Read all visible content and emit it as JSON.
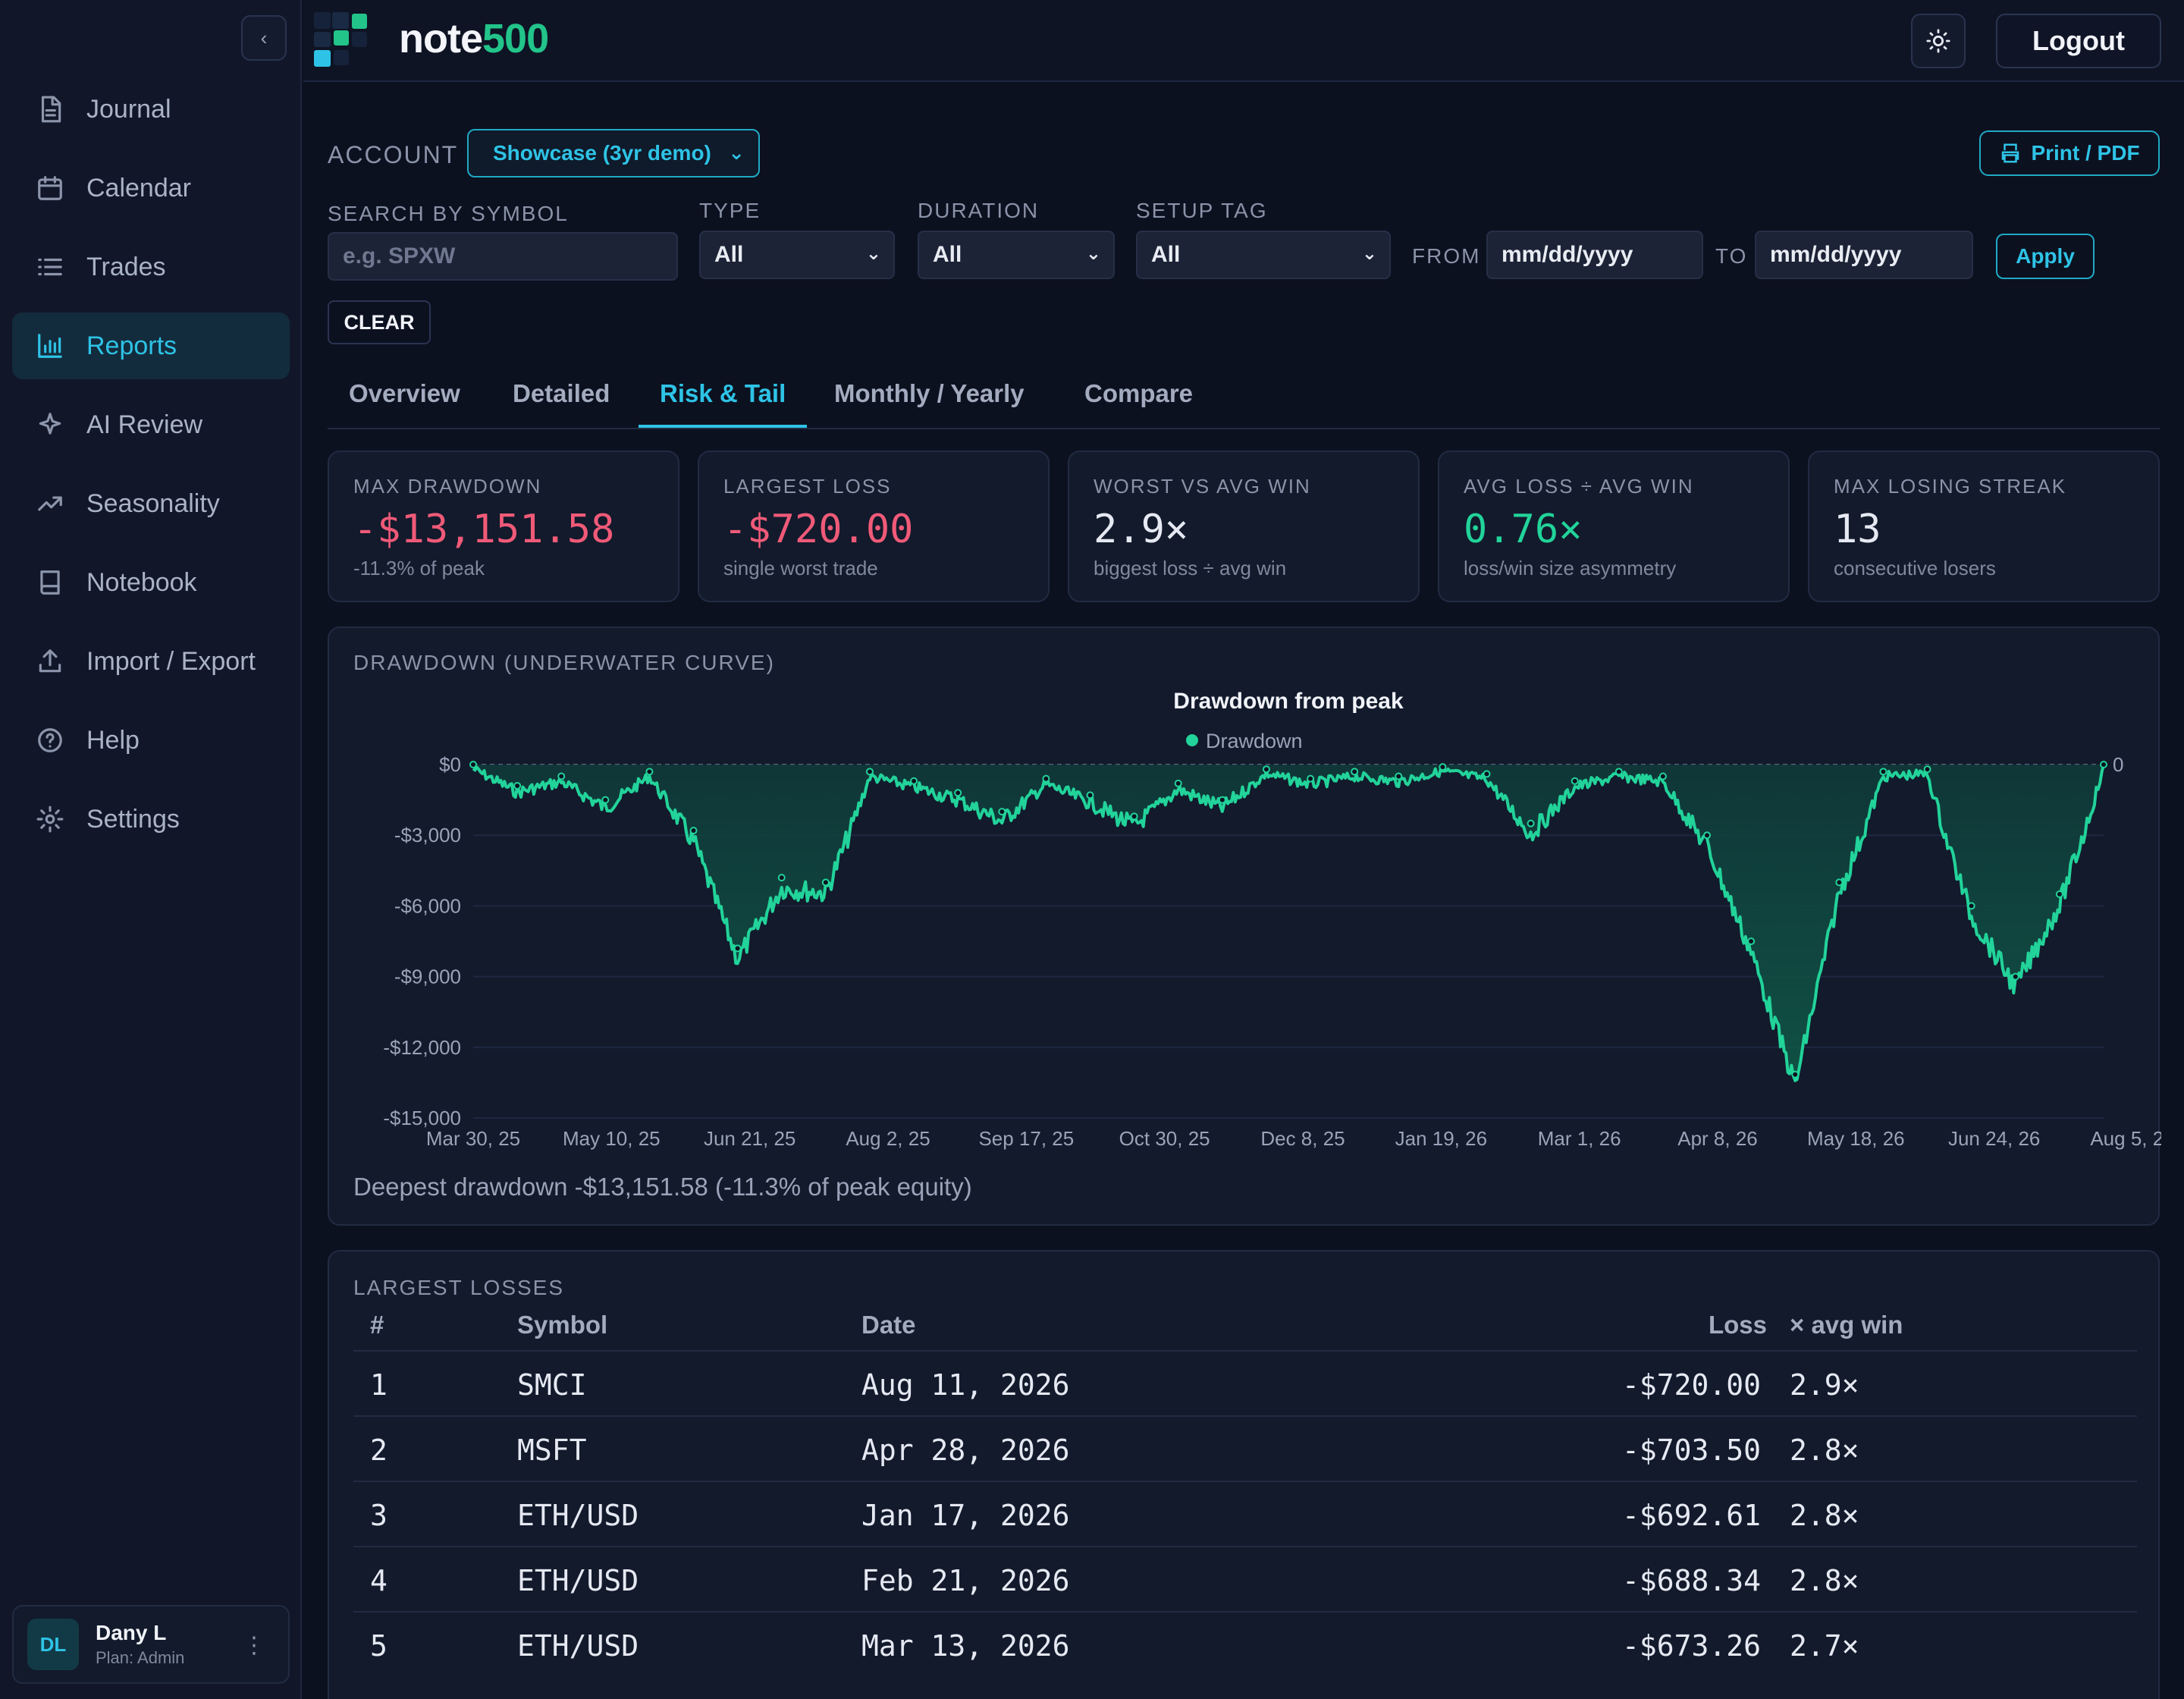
{
  "brand": {
    "part1": "note",
    "part2": "500"
  },
  "topbar": {
    "logout_label": "Logout"
  },
  "sidebar": {
    "items": [
      {
        "label": "Journal",
        "icon": "document-icon"
      },
      {
        "label": "Calendar",
        "icon": "calendar-icon"
      },
      {
        "label": "Trades",
        "icon": "list-icon"
      },
      {
        "label": "Reports",
        "icon": "bar-chart-icon",
        "active": true
      },
      {
        "label": "AI Review",
        "icon": "sparkle-icon"
      },
      {
        "label": "Seasonality",
        "icon": "trend-up-icon"
      },
      {
        "label": "Notebook",
        "icon": "book-icon"
      },
      {
        "label": "Import / Export",
        "icon": "upload-icon"
      },
      {
        "label": "Help",
        "icon": "help-icon"
      },
      {
        "label": "Settings",
        "icon": "gear-icon"
      }
    ],
    "user": {
      "initials": "DL",
      "name": "Dany L",
      "plan": "Plan: Admin"
    }
  },
  "filters": {
    "account_label": "ACCOUNT",
    "account_value": "Showcase (3yr demo)",
    "print_label": "Print / PDF",
    "search_label": "SEARCH BY SYMBOL",
    "search_placeholder": "e.g. SPXW",
    "type_label": "TYPE",
    "type_value": "All",
    "duration_label": "DURATION",
    "duration_value": "All",
    "setup_label": "SETUP TAG",
    "setup_value": "All",
    "from_label": "FROM",
    "from_value": "mm/dd/yyyy",
    "to_label": "TO",
    "to_value": "mm/dd/yyyy",
    "apply_label": "Apply",
    "clear_label": "CLEAR"
  },
  "tabs": [
    "Overview",
    "Detailed",
    "Risk & Tail",
    "Monthly / Yearly",
    "Compare"
  ],
  "active_tab": "Risk & Tail",
  "stats": [
    {
      "label": "MAX DRAWDOWN",
      "value": "-$13,151.58",
      "sub": "-11.3% of peak",
      "tone": "neg"
    },
    {
      "label": "LARGEST LOSS",
      "value": "-$720.00",
      "sub": "single worst trade",
      "tone": "neg"
    },
    {
      "label": "WORST VS AVG WIN",
      "value": "2.9×",
      "sub": "biggest loss ÷ avg win",
      "tone": "plain"
    },
    {
      "label": "AVG LOSS ÷ AVG WIN",
      "value": "0.76×",
      "sub": "loss/win size asymmetry",
      "tone": "pos"
    },
    {
      "label": "MAX LOSING STREAK",
      "value": "13",
      "sub": "consecutive losers",
      "tone": "plain"
    }
  ],
  "drawdown_card": {
    "title": "DRAWDOWN (UNDERWATER CURVE)",
    "footer": "Deepest drawdown -$13,151.58 (-11.3% of peak equity)"
  },
  "chart_data": {
    "type": "area",
    "title": "Drawdown from peak",
    "series": [
      {
        "name": "Drawdown",
        "x": [
          "Mar 30, 25",
          "Apr 13, 25",
          "Apr 27, 25",
          "May 10, 25",
          "May 25, 25",
          "Jun 8, 25",
          "Jun 21, 25",
          "Jul 6, 25",
          "Jul 20, 25",
          "Aug 2, 25",
          "Aug 17, 25",
          "Sep 2, 25",
          "Sep 17, 25",
          "Oct 1, 25",
          "Oct 15, 25",
          "Oct 30, 25",
          "Nov 12, 25",
          "Nov 25, 25",
          "Dec 8, 25",
          "Dec 22, 25",
          "Jan 5, 26",
          "Jan 19, 26",
          "Feb 2, 26",
          "Feb 16, 26",
          "Mar 1, 26",
          "Mar 15, 26",
          "Mar 25, 26",
          "Apr 8, 26",
          "Apr 20, 26",
          "May 5, 26",
          "May 18, 26",
          "Jun 1, 26",
          "Jun 12, 26",
          "Jun 24, 26",
          "Jul 8, 26",
          "Jul 22, 26",
          "Aug 5, 26",
          "Aug 11, 26"
        ],
        "values": [
          0,
          -900,
          -500,
          -1500,
          -300,
          -2800,
          -7800,
          -4800,
          -5000,
          -300,
          -700,
          -1200,
          -2000,
          -600,
          -1300,
          -2200,
          -800,
          -1500,
          -200,
          -600,
          -300,
          -500,
          -100,
          -400,
          -2500,
          -700,
          -300,
          -500,
          -3000,
          -7500,
          -13151.58,
          -5000,
          -300,
          -200,
          -6000,
          -9000,
          -5500,
          0
        ]
      }
    ],
    "ylabel": "",
    "xlabel": "",
    "ylim": [
      -15000,
      0
    ],
    "y_ticks": [
      "$0",
      "-$3,000",
      "-$6,000",
      "-$9,000",
      "-$12,000",
      "-$15,000"
    ],
    "x_ticks": [
      "Mar 30, 25",
      "May 10, 25",
      "Jun 21, 25",
      "Aug 2, 25",
      "Sep 17, 25",
      "Oct 30, 25",
      "Dec 8, 25",
      "Jan 19, 26",
      "Mar 1, 26",
      "Apr 8, 26",
      "May 18, 26",
      "Jun 24, 26",
      "Aug 5, 26"
    ],
    "right_label": "0",
    "legend": "top-center",
    "grid": true,
    "color": "#22d39a"
  },
  "losses": {
    "title": "LARGEST LOSSES",
    "headers": {
      "num": "#",
      "symbol": "Symbol",
      "date": "Date",
      "loss": "Loss",
      "ratio": "× avg win"
    },
    "rows": [
      {
        "num": "1",
        "symbol": "SMCI",
        "date": "Aug 11, 2026",
        "loss": "-$720.00",
        "ratio": "2.9×"
      },
      {
        "num": "2",
        "symbol": "MSFT",
        "date": "Apr 28, 2026",
        "loss": "-$703.50",
        "ratio": "2.8×"
      },
      {
        "num": "3",
        "symbol": "ETH/USD",
        "date": "Jan 17, 2026",
        "loss": "-$692.61",
        "ratio": "2.8×"
      },
      {
        "num": "4",
        "symbol": "ETH/USD",
        "date": "Feb 21, 2026",
        "loss": "-$688.34",
        "ratio": "2.8×"
      },
      {
        "num": "5",
        "symbol": "ETH/USD",
        "date": "Mar 13, 2026",
        "loss": "-$673.26",
        "ratio": "2.7×"
      }
    ]
  }
}
